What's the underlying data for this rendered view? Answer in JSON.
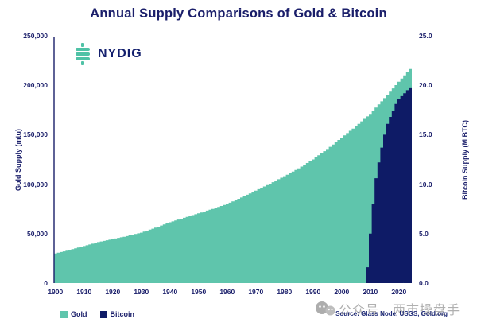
{
  "title": "Annual Supply Comparisons of Gold & Bitcoin",
  "logo": {
    "text": "NYDIG",
    "icon": "nydig-dollar-bars-icon"
  },
  "colors": {
    "gold": "#5FC5AC",
    "bitcoin": "#0E1B66",
    "text": "#1A1E6A",
    "source_text": "#1E2A78",
    "watermark": "#B0B0B0",
    "background": "#FFFFFF",
    "logo_teal": "#4FC2A6",
    "logo_navy": "#14206E"
  },
  "left_axis": {
    "label": "Gold Supply (mtu)",
    "tick_labels": [
      "0",
      "50,000",
      "100,000",
      "150,000",
      "200,000",
      "250,000"
    ],
    "tick_values": [
      0,
      50000,
      100000,
      150000,
      200000,
      250000
    ]
  },
  "right_axis": {
    "label": "Bitcoin Supply (M BTC)",
    "tick_labels": [
      "0.0",
      "5.0",
      "10.0",
      "15.0",
      "20.0",
      "25.0"
    ],
    "tick_values": [
      0,
      5,
      10,
      15,
      20,
      25
    ]
  },
  "x_axis": {
    "tick_labels": [
      "1900",
      "1910",
      "1920",
      "1930",
      "1940",
      "1950",
      "1960",
      "1970",
      "1980",
      "1990",
      "2000",
      "2010",
      "2020"
    ],
    "tick_values": [
      1900,
      1910,
      1920,
      1930,
      1940,
      1950,
      1960,
      1970,
      1980,
      1990,
      2000,
      2010,
      2020
    ]
  },
  "legend": [
    {
      "label": "Gold",
      "color": "#5FC5AC"
    },
    {
      "label": "Bitcoin",
      "color": "#0E1B66"
    }
  ],
  "source": "Source: Glass Node, USGS, Gold.org",
  "watermark": {
    "icon": "wechat-faces-icon",
    "text": "公众号，两市操盘手"
  },
  "chart_data": {
    "type": [
      "area",
      "bar"
    ],
    "title": "Annual Supply Comparisons of Gold & Bitcoin",
    "xlabel": "",
    "left_ylabel": "Gold Supply (mtu)",
    "right_ylabel": "Bitcoin Supply (M BTC)",
    "xlim": [
      1900,
      2024
    ],
    "left_ylim": [
      0,
      250000
    ],
    "right_ylim": [
      0,
      25
    ],
    "grid": false,
    "legend_position": "bottom-left",
    "series": [
      {
        "name": "Gold",
        "type": "area",
        "axis": "left",
        "unit": "mtu",
        "color": "#5FC5AC",
        "x": [
          1900,
          1905,
          1910,
          1915,
          1920,
          1925,
          1930,
          1935,
          1940,
          1945,
          1950,
          1955,
          1960,
          1965,
          1970,
          1975,
          1980,
          1985,
          1990,
          1995,
          2000,
          2005,
          2010,
          2015,
          2020,
          2024
        ],
        "values": [
          30000,
          33500,
          37500,
          41500,
          44500,
          47500,
          51000,
          56000,
          61500,
          66000,
          70500,
          75000,
          80000,
          86500,
          93500,
          100500,
          108000,
          116000,
          125000,
          135500,
          147000,
          158500,
          171000,
          187000,
          203500,
          216500
        ]
      },
      {
        "name": "Bitcoin",
        "type": "bar",
        "axis": "right",
        "unit": "M BTC",
        "color": "#0E1B66",
        "x": [
          2009,
          2010,
          2011,
          2012,
          2013,
          2014,
          2015,
          2016,
          2017,
          2018,
          2019,
          2020,
          2021,
          2022,
          2023,
          2024
        ],
        "values": [
          1.6,
          5.0,
          8.0,
          10.6,
          12.2,
          13.7,
          15.0,
          16.1,
          16.8,
          17.4,
          18.1,
          18.6,
          18.9,
          19.2,
          19.5,
          19.7
        ]
      }
    ]
  }
}
